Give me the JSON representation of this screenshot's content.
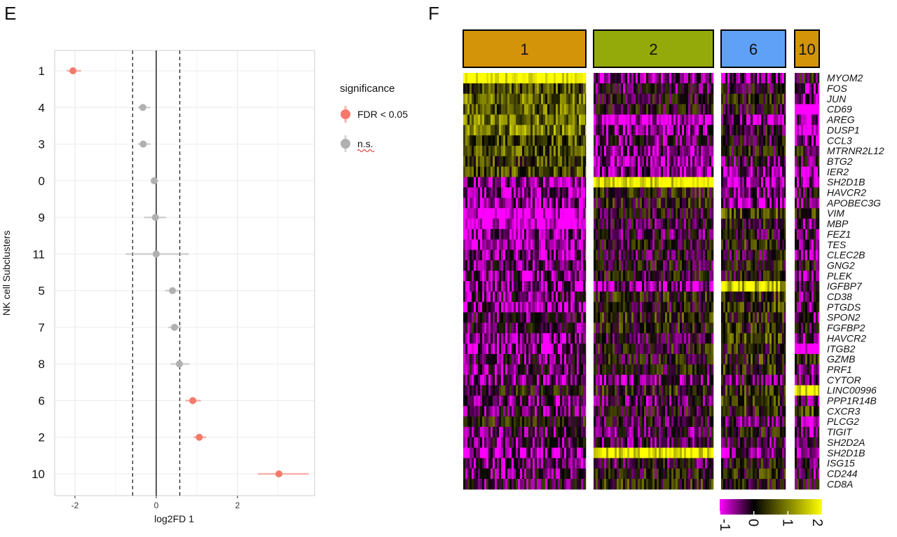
{
  "panels": {
    "e_letter": "E",
    "f_letter": "F"
  },
  "chart_data": [
    {
      "type": "scatter",
      "panel": "E",
      "xlabel": "log2FD 1",
      "ylabel": "NK cell Subclusters",
      "xlim": [
        -2.5,
        3.9
      ],
      "x_ticks": [
        -2,
        0,
        2
      ],
      "threshold_lines": [
        -0.58,
        0.58
      ],
      "zero_line": 0,
      "grid": true,
      "categories": [
        "1",
        "4",
        "3",
        "0",
        "9",
        "11",
        "5",
        "7",
        "8",
        "6",
        "2",
        "10"
      ],
      "legend": {
        "title": "significance",
        "position": "right",
        "entries": [
          {
            "label": "FDR < 0.05",
            "color": "#F4796B"
          },
          {
            "label": "n.s.",
            "color": "#B0B0B0"
          }
        ]
      },
      "points": [
        {
          "cluster": "1",
          "estimate": -2.05,
          "low": -2.2,
          "high": -1.85,
          "significance": "FDR < 0.05"
        },
        {
          "cluster": "4",
          "estimate": -0.33,
          "low": -0.45,
          "high": -0.15,
          "significance": "n.s."
        },
        {
          "cluster": "3",
          "estimate": -0.32,
          "low": -0.45,
          "high": -0.15,
          "significance": "n.s."
        },
        {
          "cluster": "0",
          "estimate": -0.05,
          "low": -0.12,
          "high": 0.05,
          "significance": "n.s."
        },
        {
          "cluster": "9",
          "estimate": -0.02,
          "low": -0.3,
          "high": 0.25,
          "significance": "n.s."
        },
        {
          "cluster": "11",
          "estimate": 0.0,
          "low": -0.75,
          "high": 0.8,
          "significance": "n.s."
        },
        {
          "cluster": "5",
          "estimate": 0.4,
          "low": 0.22,
          "high": 0.58,
          "significance": "n.s."
        },
        {
          "cluster": "7",
          "estimate": 0.45,
          "low": 0.3,
          "high": 0.62,
          "significance": "n.s."
        },
        {
          "cluster": "8",
          "estimate": 0.57,
          "low": 0.35,
          "high": 0.82,
          "significance": "n.s."
        },
        {
          "cluster": "6",
          "estimate": 0.9,
          "low": 0.72,
          "high": 1.1,
          "significance": "FDR < 0.05"
        },
        {
          "cluster": "2",
          "estimate": 1.06,
          "low": 0.92,
          "high": 1.23,
          "significance": "FDR < 0.05"
        },
        {
          "cluster": "10",
          "estimate": 3.02,
          "low": 2.5,
          "high": 3.75,
          "significance": "FDR < 0.05"
        }
      ]
    },
    {
      "type": "heatmap",
      "panel": "F",
      "clusters": [
        {
          "label": "1",
          "color": "#D4940A",
          "relative_width": 175
        },
        {
          "label": "2",
          "color": "#94A90A",
          "relative_width": 172
        },
        {
          "label": "6",
          "color": "#5FA1F6",
          "relative_width": 92
        },
        {
          "label": "10",
          "color": "#D4940A",
          "relative_width": 35
        }
      ],
      "genes": [
        "MYOM2",
        "FOS",
        "JUN",
        "CD69",
        "AREG",
        "DUSP1",
        "CCL3",
        "MTRNR2L12",
        "BTG2",
        "IER2",
        "SH2D1B",
        "HAVCR2",
        "APOBEC3G",
        "VIM",
        "MBP",
        "FEZ1",
        "TES",
        "CLEC2B",
        "GNG2",
        "PLEK",
        "IGFBP7",
        "CD38",
        "PTGDS",
        "SPON2",
        "FGFBP2",
        "HAVCR2",
        "ITGB2",
        "GZMB",
        "PRF1",
        "CYTOR",
        "LINC00996",
        "PPP1R14B",
        "CXCR3",
        "PLCG2",
        "TIGIT",
        "SH2D2A",
        "SH2D1B",
        "ISG15",
        "CD244",
        "CD8A"
      ],
      "mean_expression": [
        [
          2.0,
          -0.5,
          -0.5,
          0.0
        ],
        [
          0.6,
          -0.2,
          0.0,
          -0.5
        ],
        [
          0.8,
          0.0,
          0.2,
          -0.5
        ],
        [
          0.7,
          0.0,
          0.1,
          -1.5
        ],
        [
          0.9,
          -0.9,
          -0.6,
          -0.5
        ],
        [
          0.9,
          -0.5,
          0.0,
          -1.2
        ],
        [
          0.6,
          -0.3,
          -0.1,
          -0.7
        ],
        [
          0.6,
          -0.6,
          0.1,
          0.1
        ],
        [
          0.5,
          -0.5,
          -0.2,
          -0.2
        ],
        [
          0.5,
          -0.6,
          -0.5,
          -0.6
        ],
        [
          -0.7,
          1.9,
          -0.6,
          -0.5
        ],
        [
          -0.6,
          0.2,
          -0.4,
          -0.2
        ],
        [
          -0.5,
          0.2,
          -0.6,
          -0.4
        ],
        [
          -1.0,
          0.0,
          0.5,
          0.3
        ],
        [
          -1.0,
          -0.1,
          0.1,
          -0.3
        ],
        [
          -0.7,
          -0.2,
          0.0,
          -0.2
        ],
        [
          -0.7,
          0.0,
          0.2,
          -0.3
        ],
        [
          -0.5,
          -0.1,
          0.0,
          -0.5
        ],
        [
          -0.4,
          0.0,
          0.2,
          0.1
        ],
        [
          -0.4,
          0.0,
          0.1,
          -0.4
        ],
        [
          -0.5,
          -0.6,
          1.6,
          -0.3
        ],
        [
          -0.3,
          0.2,
          0.3,
          -0.3
        ],
        [
          -0.6,
          0.0,
          0.4,
          -0.3
        ],
        [
          -0.2,
          0.3,
          0.2,
          -0.3
        ],
        [
          -0.2,
          0.2,
          0.3,
          0.0
        ],
        [
          -0.5,
          -0.1,
          0.5,
          -0.3
        ],
        [
          -0.5,
          0.1,
          0.2,
          -1.3
        ],
        [
          -0.3,
          0.1,
          0.3,
          0.2
        ],
        [
          -0.3,
          0.1,
          0.3,
          -0.4
        ],
        [
          -0.4,
          -0.4,
          -0.2,
          -0.3
        ],
        [
          0.1,
          0.2,
          0.3,
          2.0
        ],
        [
          -0.4,
          -0.3,
          0.3,
          -0.3
        ],
        [
          -0.3,
          0.0,
          0.2,
          0.5
        ],
        [
          0.2,
          -0.1,
          -0.2,
          -0.4
        ],
        [
          -0.3,
          -0.2,
          0.1,
          -0.3
        ],
        [
          -0.3,
          -0.2,
          -0.3,
          -0.2
        ],
        [
          -0.6,
          1.9,
          -0.5,
          -0.5
        ],
        [
          -0.4,
          -0.1,
          0.1,
          -0.4
        ],
        [
          -0.3,
          0.1,
          0.2,
          -0.3
        ],
        [
          -0.2,
          0.3,
          0.1,
          0.1
        ]
      ],
      "colorbar": {
        "ticks": [
          "-1",
          "0",
          "1",
          "2"
        ],
        "range": [
          -1,
          2
        ],
        "colors": [
          "#FF00FF",
          "#000000",
          "#FFFF00"
        ]
      }
    }
  ]
}
